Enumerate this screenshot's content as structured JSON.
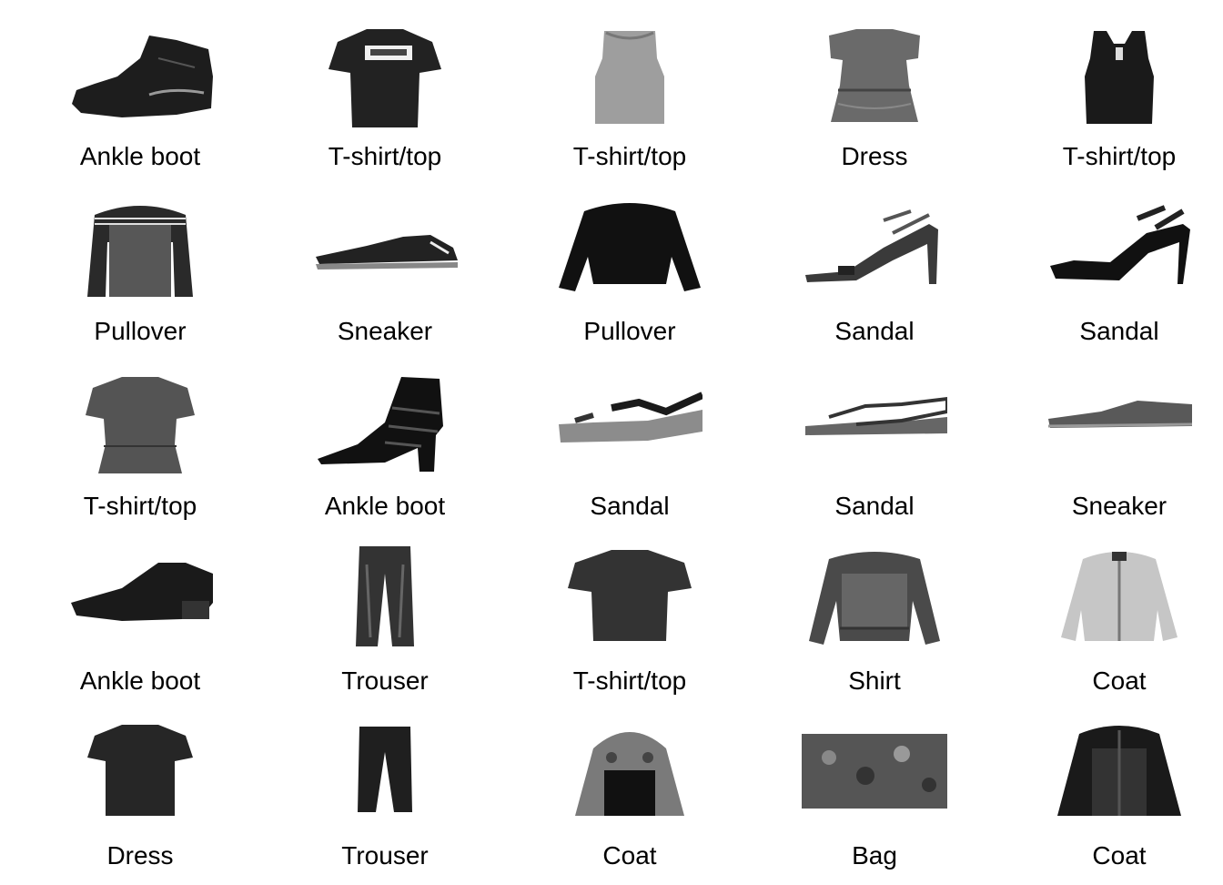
{
  "items": [
    {
      "label": "Ankle boot",
      "icon": "ankle-boot"
    },
    {
      "label": "T-shirt/top",
      "icon": "t-shirt"
    },
    {
      "label": "T-shirt/top",
      "icon": "tank-top"
    },
    {
      "label": "Dress",
      "icon": "dress-ruffle"
    },
    {
      "label": "T-shirt/top",
      "icon": "vest"
    },
    {
      "label": "Pullover",
      "icon": "pullover-striped"
    },
    {
      "label": "Sneaker",
      "icon": "sneaker"
    },
    {
      "label": "Pullover",
      "icon": "pullover"
    },
    {
      "label": "Sandal",
      "icon": "sandal-heel"
    },
    {
      "label": "Sandal",
      "icon": "sandal-heel-dark"
    },
    {
      "label": "T-shirt/top",
      "icon": "t-shirt-peplum"
    },
    {
      "label": "Ankle boot",
      "icon": "ankle-boot-heel"
    },
    {
      "label": "Sandal",
      "icon": "sandal-wedge"
    },
    {
      "label": "Sandal",
      "icon": "sandal-flat"
    },
    {
      "label": "Sneaker",
      "icon": "sneaker-low"
    },
    {
      "label": "Ankle boot",
      "icon": "oxford-shoe"
    },
    {
      "label": "Trouser",
      "icon": "trouser"
    },
    {
      "label": "T-shirt/top",
      "icon": "t-shirt"
    },
    {
      "label": "Shirt",
      "icon": "shirt-long"
    },
    {
      "label": "Coat",
      "icon": "coat-light"
    },
    {
      "label": "Dress",
      "icon": "dress-short"
    },
    {
      "label": "Trouser",
      "icon": "trouser-short"
    },
    {
      "label": "Coat",
      "icon": "jacket-hood"
    },
    {
      "label": "Bag",
      "icon": "clutch-bag"
    },
    {
      "label": "Coat",
      "icon": "jacket-dark"
    }
  ]
}
